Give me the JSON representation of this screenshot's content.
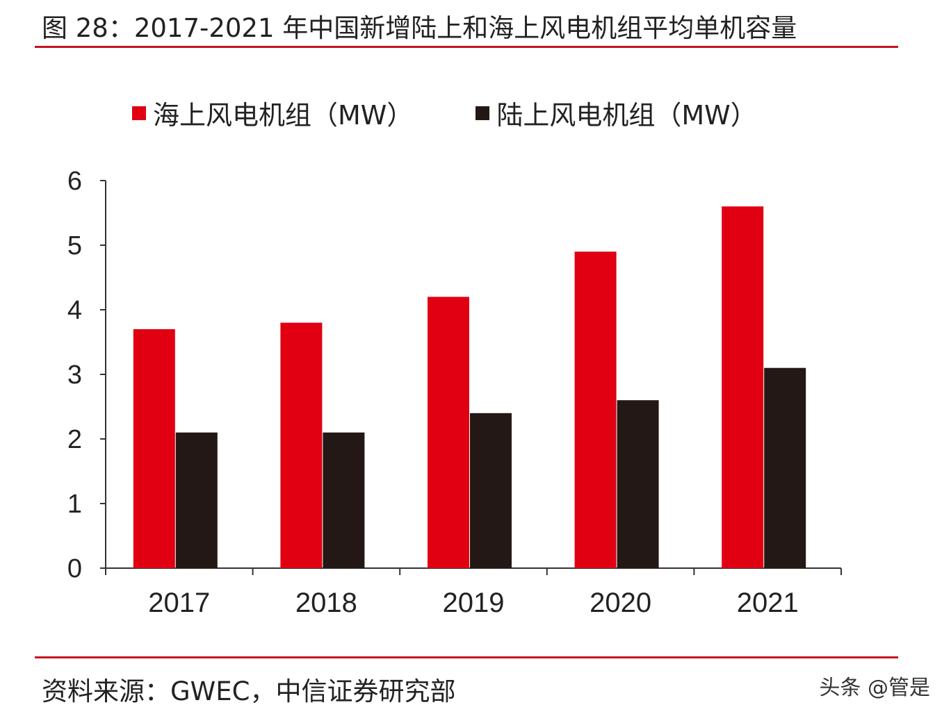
{
  "title": "图 28：2017-2021 年中国新增陆上和海上风电机组平均单机容量",
  "source": "资料来源：GWEC，中信证券研究部",
  "watermark": "头条 @管是",
  "chart_data": {
    "type": "bar",
    "categories": [
      "2017",
      "2018",
      "2019",
      "2020",
      "2021"
    ],
    "series": [
      {
        "name": "海上风电机组（MW）",
        "color": "#e00012",
        "values": [
          3.7,
          3.8,
          4.2,
          4.9,
          5.6
        ]
      },
      {
        "name": "陆上风电机组（MW）",
        "color": "#231815",
        "values": [
          2.1,
          2.1,
          2.4,
          2.6,
          3.1
        ]
      }
    ],
    "ylim": [
      0,
      6
    ],
    "yticks": [
      "0",
      "1",
      "2",
      "3",
      "4",
      "5",
      "6"
    ],
    "grid": false,
    "legend": "top"
  }
}
